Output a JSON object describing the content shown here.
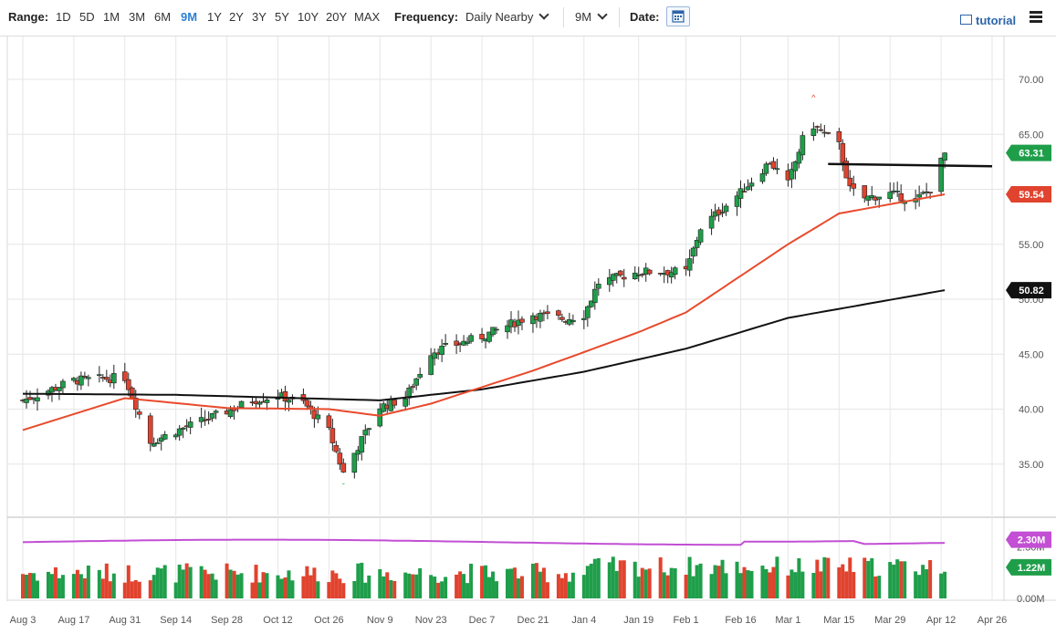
{
  "toolbar": {
    "range_label": "Range:",
    "ranges": [
      "1D",
      "5D",
      "1M",
      "3M",
      "6M",
      "9M",
      "1Y",
      "2Y",
      "3Y",
      "5Y",
      "10Y",
      "20Y",
      "MAX"
    ],
    "active_range": "9M",
    "frequency_label": "Frequency:",
    "frequency_value": "Daily Nearby",
    "period_value": "9M",
    "date_label": "Date:",
    "tutorial_label": "tutorial",
    "icons": {
      "calendar": "calendar-icon",
      "tutorial": "film-icon",
      "menu": "hamburger-menu-icon"
    }
  },
  "colors": {
    "up": "#1f9e4a",
    "down": "#e0432e",
    "ma_fast": "#e84a2c",
    "ma_slow": "#111111",
    "volume_ma": "#c24fd4",
    "last_price_bg": "#1f9e4a",
    "ma_fast_bg": "#e0432e",
    "ma_slow_bg": "#111111",
    "volume_ma_bg": "#c24fd4"
  },
  "chart_data": {
    "type": "candlestick",
    "y_axis": {
      "range": [
        32,
        72
      ],
      "ticks": [
        "35.00",
        "40.00",
        "45.00",
        "50.00",
        "55.00",
        "60.00",
        "65.00",
        "70.00"
      ],
      "grid": true
    },
    "x_axis": {
      "ticks": [
        "Aug 3",
        "Aug 17",
        "Aug 31",
        "Sep 14",
        "Sep 28",
        "Oct 12",
        "Oct 26",
        "Nov 9",
        "Nov 23",
        "Dec 7",
        "Dec 21",
        "Jan 4",
        "Jan 19",
        "Feb 1",
        "Feb 16",
        "Mar 1",
        "Mar 15",
        "Mar 29",
        "Apr 12",
        "Apr 26"
      ]
    },
    "price_anchors": [
      [
        "Aug 3",
        40.8
      ],
      [
        "Aug 17",
        42.6
      ],
      [
        "Aug 31",
        42.9
      ],
      [
        "Sep 7",
        37.0
      ],
      [
        "Sep 14",
        38.0
      ],
      [
        "Sep 28",
        39.8
      ],
      [
        "Oct 5",
        40.8
      ],
      [
        "Oct 12",
        41.2
      ],
      [
        "Oct 19",
        40.6
      ],
      [
        "Oct 26",
        38.0
      ],
      [
        "Oct 30",
        34.2
      ],
      [
        "Nov 9",
        40.2
      ],
      [
        "Nov 16",
        41.0
      ],
      [
        "Nov 23",
        45.2
      ],
      [
        "Dec 7",
        46.6
      ],
      [
        "Dec 21",
        48.6
      ],
      [
        "Dec 30",
        48.2
      ],
      [
        "Jan 4",
        48.6
      ],
      [
        "Jan 8",
        51.5
      ],
      [
        "Jan 19",
        52.5
      ],
      [
        "Feb 1",
        52.5
      ],
      [
        "Feb 5",
        56.5
      ],
      [
        "Feb 16",
        59.7
      ],
      [
        "Feb 24",
        62.5
      ],
      [
        "Mar 1",
        60.5
      ],
      [
        "Mar 5",
        64.5
      ],
      [
        "Mar 8",
        65.8
      ],
      [
        "Mar 15",
        64.0
      ],
      [
        "Mar 18",
        60.0
      ],
      [
        "Mar 22",
        59.2
      ],
      [
        "Mar 29",
        59.6
      ],
      [
        "Apr 5",
        59.0
      ],
      [
        "Apr 9",
        60.0
      ],
      [
        "Apr 12",
        62.5
      ],
      [
        "Apr 13",
        63.31
      ]
    ],
    "moving_average_50": [
      [
        "Aug 3",
        38.1
      ],
      [
        "Aug 31",
        41.0
      ],
      [
        "Sep 28",
        40.1
      ],
      [
        "Oct 26",
        40.0
      ],
      [
        "Nov 9",
        39.4
      ],
      [
        "Nov 23",
        40.5
      ],
      [
        "Dec 21",
        43.5
      ],
      [
        "Jan 19",
        47.0
      ],
      [
        "Feb 1",
        48.8
      ],
      [
        "Mar 1",
        55.0
      ],
      [
        "Mar 15",
        57.8
      ],
      [
        "Apr 13",
        59.54
      ]
    ],
    "moving_average_200": [
      [
        "Aug 3",
        41.4
      ],
      [
        "Sep 14",
        41.3
      ],
      [
        "Nov 9",
        40.8
      ],
      [
        "Dec 7",
        41.8
      ],
      [
        "Jan 4",
        43.4
      ],
      [
        "Feb 1",
        45.5
      ],
      [
        "Mar 1",
        48.3
      ],
      [
        "Apr 13",
        50.82
      ]
    ],
    "resistance_line": [
      [
        "Mar 15",
        62.3
      ],
      [
        "Apr 26",
        62.1
      ]
    ],
    "annotations": {
      "high_marker": 68.1,
      "low_marker": 33.2
    },
    "price_labels": [
      {
        "name": "last-price",
        "value": 63.31,
        "text": "63.31"
      },
      {
        "name": "ma-50",
        "value": 59.54,
        "text": "59.54"
      },
      {
        "name": "ma-200",
        "value": 50.82,
        "text": "50.82"
      }
    ],
    "volume": {
      "y_axis": {
        "ticks": [
          "0.00M",
          "2.30M"
        ]
      },
      "volume_ma_label": "2.30M",
      "last_volume_label": "1.22M",
      "last_volume_value": 1.22,
      "volume_ma_value": 2.3
    }
  }
}
